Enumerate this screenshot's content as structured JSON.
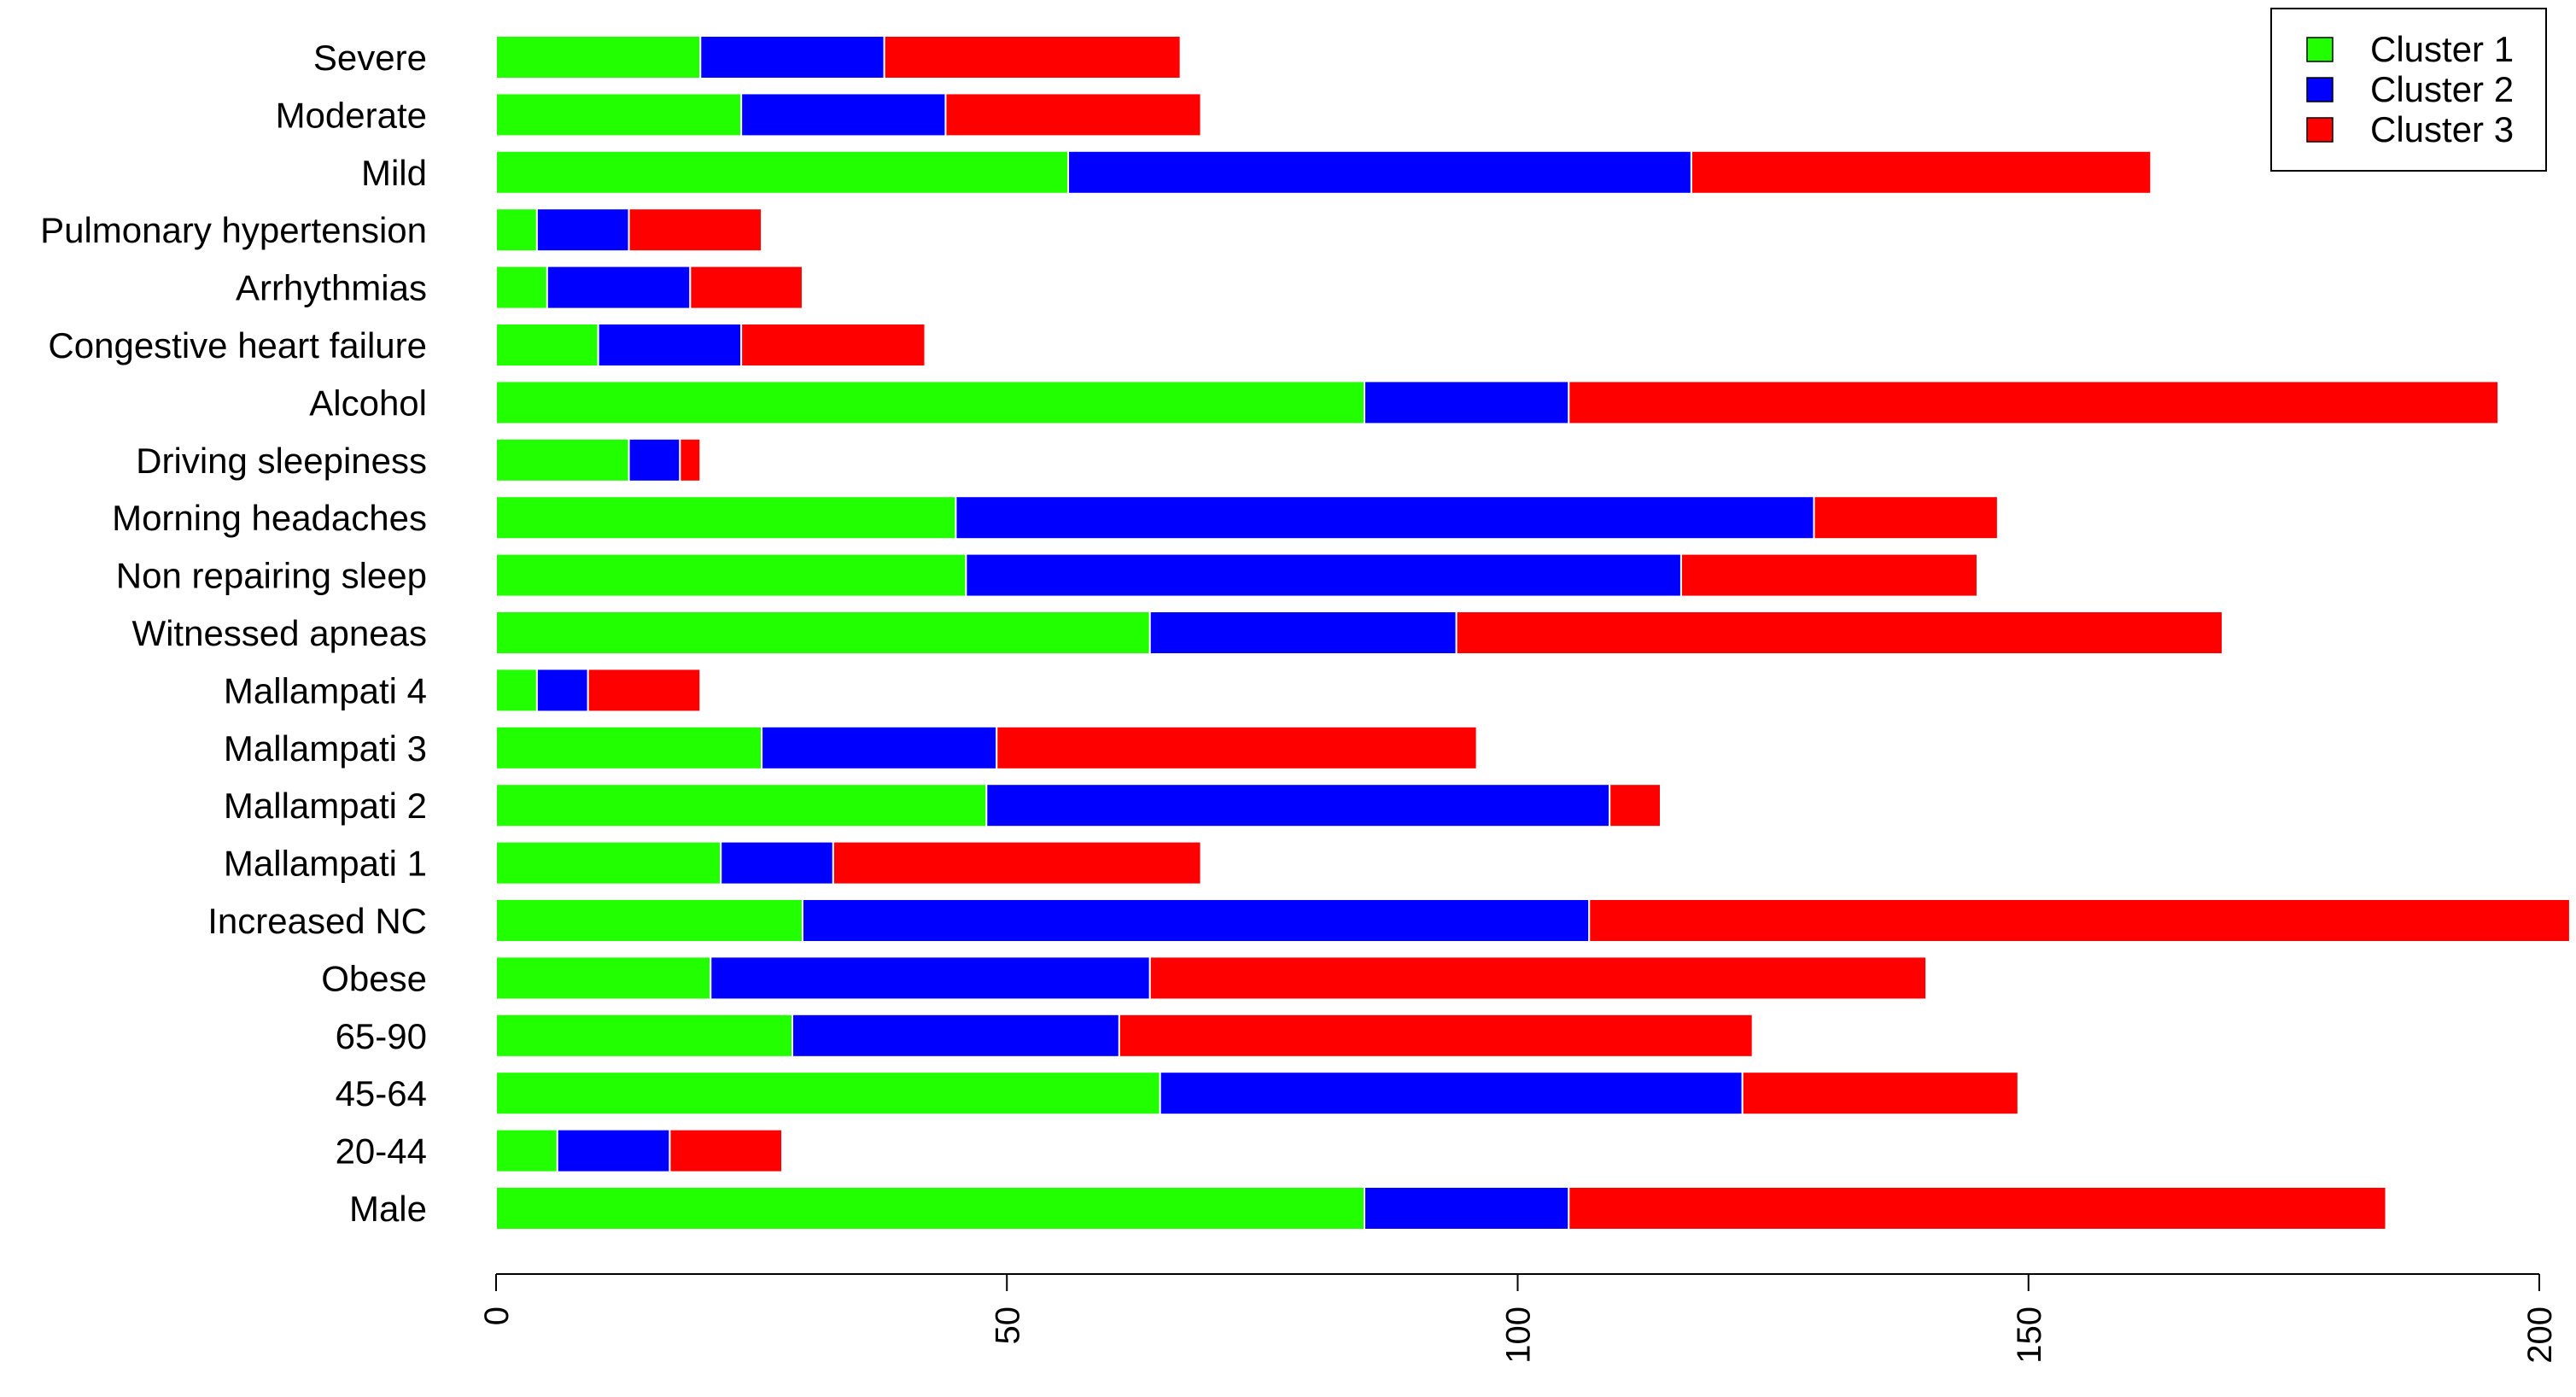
{
  "chart_data": {
    "type": "bar",
    "orientation": "horizontal",
    "stacked": true,
    "categories": [
      "Severe",
      "Moderate",
      "Mild",
      "Pulmonary hypertension",
      "Arrhythmias",
      "Congestive heart failure",
      "Alcohol",
      "Driving sleepiness",
      "Morning headaches",
      "Non repairing sleep",
      "Witnessed apneas",
      "Mallampati 4",
      "Mallampati 3",
      "Mallampati 2",
      "Mallampati 1",
      "Increased NC",
      "Obese",
      "65-90",
      "45-64",
      "20-44",
      "Male"
    ],
    "series": [
      {
        "name": "Cluster 1",
        "color": "#22ff00",
        "values": [
          20,
          24,
          56,
          4,
          5,
          10,
          85,
          13,
          45,
          46,
          64,
          4,
          26,
          48,
          22,
          30,
          21,
          29,
          65,
          6,
          85
        ]
      },
      {
        "name": "Cluster 2",
        "color": "#0000ff",
        "values": [
          18,
          20,
          61,
          9,
          14,
          14,
          20,
          5,
          84,
          70,
          30,
          5,
          23,
          61,
          11,
          77,
          43,
          32,
          57,
          11,
          20
        ]
      },
      {
        "name": "Cluster 3",
        "color": "#ff0000",
        "values": [
          29,
          25,
          45,
          13,
          11,
          18,
          91,
          2,
          18,
          29,
          75,
          11,
          47,
          5,
          36,
          96,
          76,
          62,
          27,
          11,
          80
        ]
      }
    ],
    "xlim": [
      0,
      200
    ],
    "xticks": [
      "0",
      "50",
      "100",
      "150",
      "200"
    ],
    "title": "",
    "xlabel": "",
    "ylabel": "",
    "grid": false,
    "legend_position": "top-right"
  }
}
